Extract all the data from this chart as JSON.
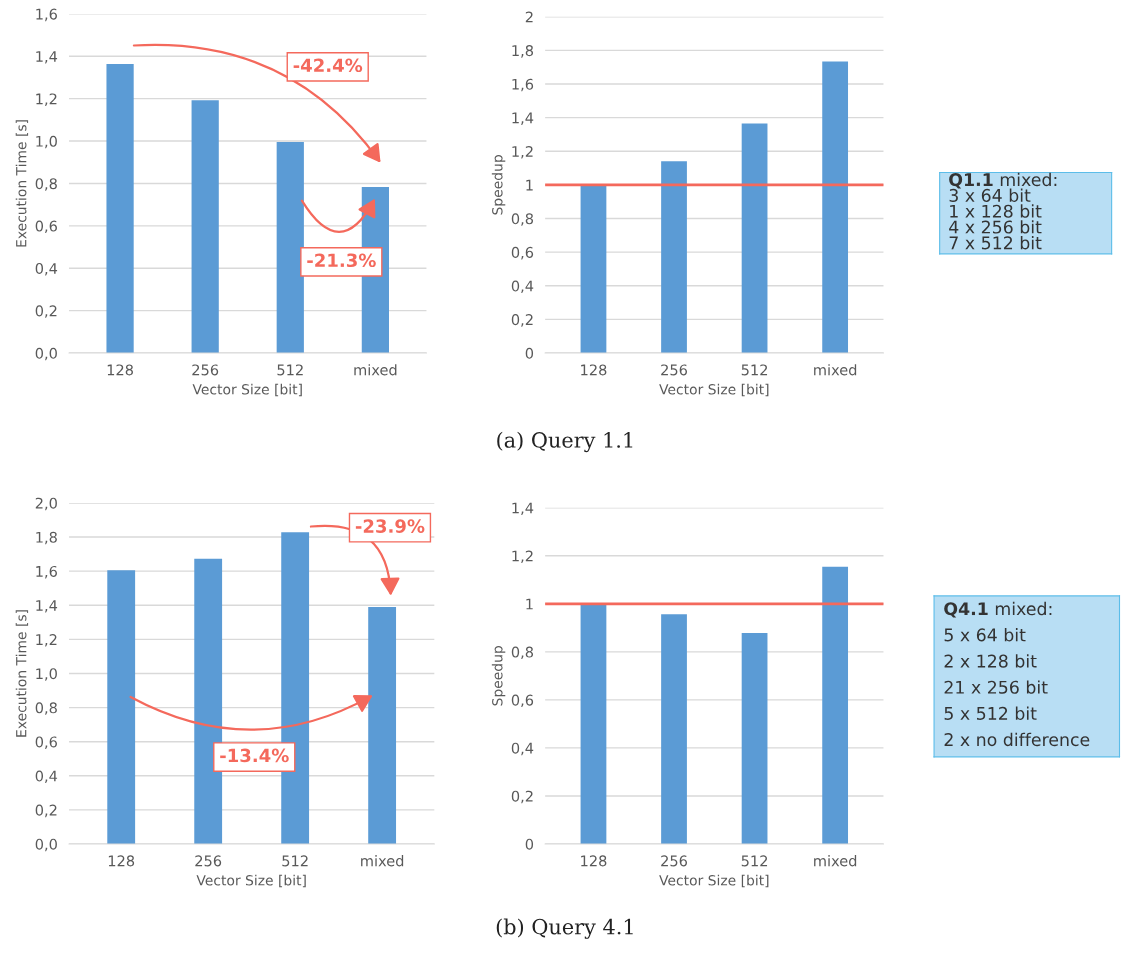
{
  "chart_data": [
    {
      "type": "bar",
      "xlabel": "Vector Size [bit]",
      "ylabel": "Execution Time [s]",
      "categories": [
        "128",
        "256",
        "512",
        "mixed"
      ],
      "values": [
        1.363,
        1.192,
        0.996,
        0.783
      ],
      "color": "#5b9bd5",
      "ylim": [
        0,
        1.6
      ],
      "yticks": [
        {
          "value": 0,
          "label": "0,0"
        },
        {
          "value": 0.2,
          "label": "0,2"
        },
        {
          "value": 0.4,
          "label": "0,4"
        },
        {
          "value": 0.6,
          "label": "0,6"
        },
        {
          "value": 0.8,
          "label": "0,8"
        },
        {
          "value": 1.0,
          "label": "1,0"
        },
        {
          "value": 1.2,
          "label": "1,2"
        },
        {
          "value": 1.4,
          "label": "1,4"
        },
        {
          "value": 1.6,
          "label": "1,6"
        }
      ],
      "grid": "y",
      "annotations": [
        "-42.4%",
        "-21.3%",
        "(a) Query 1.1"
      ]
    },
    {
      "type": "bar",
      "xlabel": "Vector Size [bit]",
      "ylabel": "Speedup",
      "categories": [
        "128",
        "256",
        "512",
        "mixed"
      ],
      "values": [
        1.0,
        1.141,
        1.365,
        1.734
      ],
      "color": "#5b9bd5",
      "ylim": [
        0,
        2
      ],
      "yticks": [
        0,
        {
          "value": 0.2,
          "label": "0,2"
        },
        {
          "value": 0.4,
          "label": "0,4"
        },
        {
          "value": 0.6,
          "label": "0,6"
        },
        {
          "value": 0.8,
          "label": "0,8"
        },
        1,
        {
          "value": 1.2,
          "label": "1,2"
        },
        {
          "value": 1.4,
          "label": "1,4"
        },
        {
          "value": 1.6,
          "label": "1,6"
        },
        {
          "value": 1.8,
          "label": "1,8"
        },
        2
      ],
      "grid": "y",
      "ref_lines": [
        {
          "axis": "y",
          "value": 1,
          "color": "#f4695c"
        }
      ]
    },
    {
      "type": "other",
      "title": "Q1.1",
      "subtitle": "mixed:",
      "annotations": [
        "3 x 64 bit",
        "1 x 128 bit",
        "4 x 256 bit",
        "7 x 512 bit"
      ]
    },
    {
      "type": "bar",
      "xlabel": "Vector Size [bit]",
      "ylabel": "Execution Time [s]",
      "categories": [
        "128",
        "256",
        "512",
        "mixed"
      ],
      "values": [
        1.605,
        1.673,
        1.828,
        1.39
      ],
      "color": "#5b9bd5",
      "ylim": [
        0,
        2.0
      ],
      "yticks": [
        {
          "value": 0,
          "label": "0,0"
        },
        {
          "value": 0.2,
          "label": "0,2"
        },
        {
          "value": 0.4,
          "label": "0,4"
        },
        {
          "value": 0.6,
          "label": "0,6"
        },
        {
          "value": 0.8,
          "label": "0,8"
        },
        {
          "value": 1.0,
          "label": "1,0"
        },
        {
          "value": 1.2,
          "label": "1,2"
        },
        {
          "value": 1.4,
          "label": "1,4"
        },
        {
          "value": 1.6,
          "label": "1,6"
        },
        {
          "value": 1.8,
          "label": "1,8"
        },
        {
          "value": 2.0,
          "label": "2,0"
        }
      ],
      "grid": "y",
      "annotations": [
        "-23.9%",
        "-13.4%",
        "(b) Query 4.1"
      ]
    },
    {
      "type": "bar",
      "xlabel": "Vector Size [bit]",
      "ylabel": "Speedup",
      "categories": [
        "128",
        "256",
        "512",
        "mixed"
      ],
      "values": [
        1.0,
        0.957,
        0.878,
        1.154
      ],
      "color": "#5b9bd5",
      "ylim": [
        0,
        1.4
      ],
      "yticks": [
        0,
        {
          "value": 0.2,
          "label": "0,2"
        },
        {
          "value": 0.4,
          "label": "0,4"
        },
        {
          "value": 0.6,
          "label": "0,6"
        },
        {
          "value": 0.8,
          "label": "0,8"
        },
        1,
        {
          "value": 1.2,
          "label": "1,2"
        },
        {
          "value": 1.4,
          "label": "1,4"
        }
      ],
      "grid": "y",
      "ref_lines": [
        {
          "axis": "y",
          "value": 1,
          "color": "#f4695c"
        }
      ]
    },
    {
      "type": "other",
      "title": "Q4.1",
      "subtitle": "mixed:",
      "annotations": [
        "5 x 64 bit",
        "2 x 128 bit",
        "21 x 256 bit",
        "5 x 512 bit",
        "2 x no difference"
      ]
    }
  ]
}
